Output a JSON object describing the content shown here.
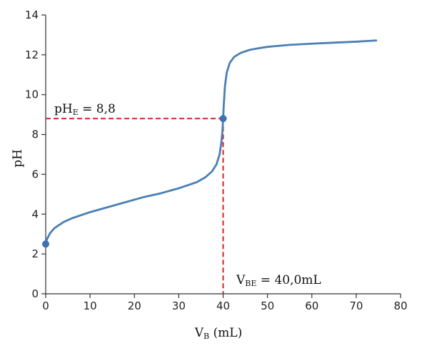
{
  "chart_data": {
    "type": "line",
    "x_label": {
      "main": "V",
      "sub": "B",
      "suffix": " (mL)"
    },
    "y_label": "pH",
    "xlim": [
      0,
      80
    ],
    "ylim": [
      0,
      14
    ],
    "x_ticks": [
      0,
      10,
      20,
      30,
      40,
      50,
      60,
      70,
      80
    ],
    "y_ticks": [
      0,
      2,
      4,
      6,
      8,
      10,
      12,
      14
    ],
    "grid": false,
    "line_color": "#4a7fb5",
    "marker_color": "#3a72b4",
    "guide_color": "#d42020",
    "series": [
      {
        "x": [
          0,
          0.3,
          1,
          2,
          4,
          6,
          8,
          10,
          14,
          18,
          22,
          26,
          30,
          34,
          36,
          37.5,
          38.5,
          39.2,
          39.6,
          39.85,
          40,
          40.15,
          40.4,
          40.8,
          41.5,
          42.5,
          44,
          46,
          48,
          50,
          55,
          60,
          65,
          70,
          74.5
        ],
        "y": [
          2.5,
          2.75,
          3.05,
          3.3,
          3.6,
          3.8,
          3.95,
          4.1,
          4.35,
          4.6,
          4.85,
          5.05,
          5.3,
          5.6,
          5.85,
          6.15,
          6.5,
          7.0,
          7.6,
          8.2,
          8.8,
          9.5,
          10.4,
          11.1,
          11.6,
          11.9,
          12.1,
          12.25,
          12.33,
          12.4,
          12.5,
          12.56,
          12.61,
          12.66,
          12.72
        ]
      }
    ],
    "points": [
      {
        "x": 0,
        "y": 2.5
      },
      {
        "x": 40,
        "y": 8.8
      }
    ],
    "annotations": [
      {
        "main": "pH",
        "sub": "E",
        "rest": " = 8,8",
        "x": 40,
        "y": 8.8
      },
      {
        "main": "V",
        "sub": "BE",
        "rest": " = 40,0mL",
        "x": 40,
        "y": 8.8
      }
    ]
  }
}
